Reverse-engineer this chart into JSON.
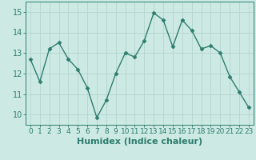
{
  "x": [
    0,
    1,
    2,
    3,
    4,
    5,
    6,
    7,
    8,
    9,
    10,
    11,
    12,
    13,
    14,
    15,
    16,
    17,
    18,
    19,
    20,
    21,
    22,
    23
  ],
  "y": [
    12.7,
    11.6,
    13.2,
    13.5,
    12.7,
    12.2,
    11.3,
    9.85,
    10.7,
    12.0,
    13.0,
    12.8,
    13.6,
    14.95,
    14.6,
    13.3,
    14.6,
    14.1,
    13.2,
    13.35,
    13.0,
    11.85,
    11.1,
    10.35
  ],
  "line_color": "#2e7d6e",
  "marker": "D",
  "marker_size": 2.5,
  "bg_color": "#cce9e4",
  "grid_color": "#b5d5cf",
  "xlabel": "Humidex (Indice chaleur)",
  "ylim": [
    9.5,
    15.5
  ],
  "xlim": [
    -0.5,
    23.5
  ],
  "yticks": [
    10,
    11,
    12,
    13,
    14,
    15
  ],
  "xticks": [
    0,
    1,
    2,
    3,
    4,
    5,
    6,
    7,
    8,
    9,
    10,
    11,
    12,
    13,
    14,
    15,
    16,
    17,
    18,
    19,
    20,
    21,
    22,
    23
  ],
  "tick_color": "#2e7d6e",
  "spine_color": "#2e7d6e",
  "font_size_label": 8,
  "font_size_tick": 6.5
}
